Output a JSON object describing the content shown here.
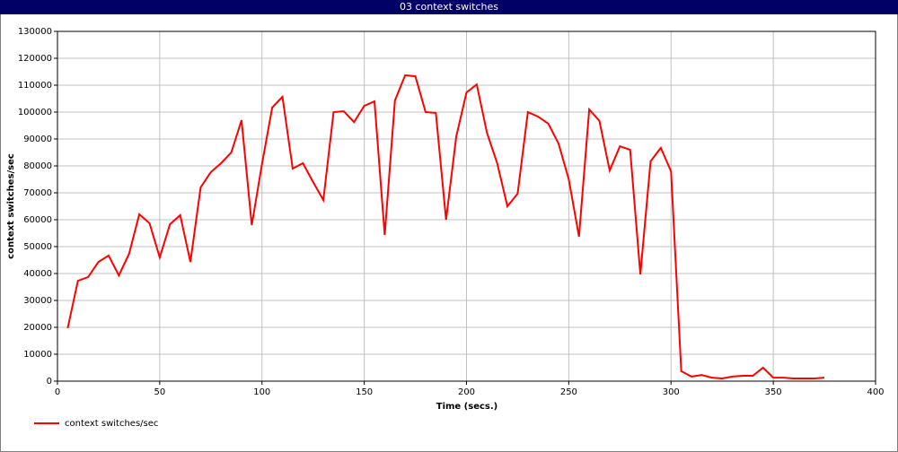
{
  "chart_data": {
    "type": "line",
    "title": "03 context switches",
    "x_label": "Time (secs.)",
    "y_label": "context switches/sec",
    "x": [
      5,
      10,
      15,
      20,
      25,
      30,
      35,
      40,
      45,
      50,
      55,
      60,
      65,
      70,
      75,
      80,
      85,
      90,
      95,
      100,
      105,
      110,
      115,
      120,
      125,
      130,
      135,
      140,
      145,
      150,
      155,
      160,
      165,
      170,
      175,
      180,
      185,
      190,
      195,
      200,
      205,
      210,
      215,
      220,
      225,
      230,
      235,
      240,
      245,
      250,
      255,
      260,
      265,
      270,
      275,
      280,
      285,
      290,
      295,
      300,
      305,
      310,
      315,
      320,
      325,
      330,
      335,
      340,
      345,
      350,
      355,
      360,
      365,
      370,
      375
    ],
    "series": [
      {
        "name": "context switches/sec",
        "color": "#ff0000",
        "values": [
          19700,
          37300,
          38700,
          44300,
          46700,
          39300,
          47300,
          62000,
          58700,
          46000,
          58300,
          61700,
          44300,
          72000,
          77700,
          81000,
          85000,
          97000,
          58000,
          80700,
          101700,
          105700,
          79000,
          81000,
          74000,
          67300,
          100000,
          100300,
          96300,
          102300,
          104000,
          54300,
          104300,
          113700,
          113300,
          100000,
          99700,
          60000,
          91000,
          107300,
          110300,
          92300,
          81000,
          65000,
          69700,
          100000,
          98300,
          95700,
          88300,
          75000,
          53700,
          101000,
          96700,
          78300,
          87300,
          86000,
          39700,
          81700,
          86700,
          78000,
          3700,
          1700,
          2300,
          1300,
          1000,
          1700,
          2000,
          2000,
          5000,
          1300,
          1300,
          1000,
          1000,
          1000,
          1300
        ]
      }
    ],
    "xlim": [
      0,
      400
    ],
    "xticks": [
      0,
      50,
      100,
      150,
      200,
      250,
      300,
      350,
      400
    ],
    "ylim": [
      0,
      130000
    ],
    "yticks": [
      0,
      10000,
      20000,
      30000,
      40000,
      50000,
      60000,
      70000,
      80000,
      90000,
      100000,
      110000,
      120000,
      130000
    ],
    "grid": true
  }
}
